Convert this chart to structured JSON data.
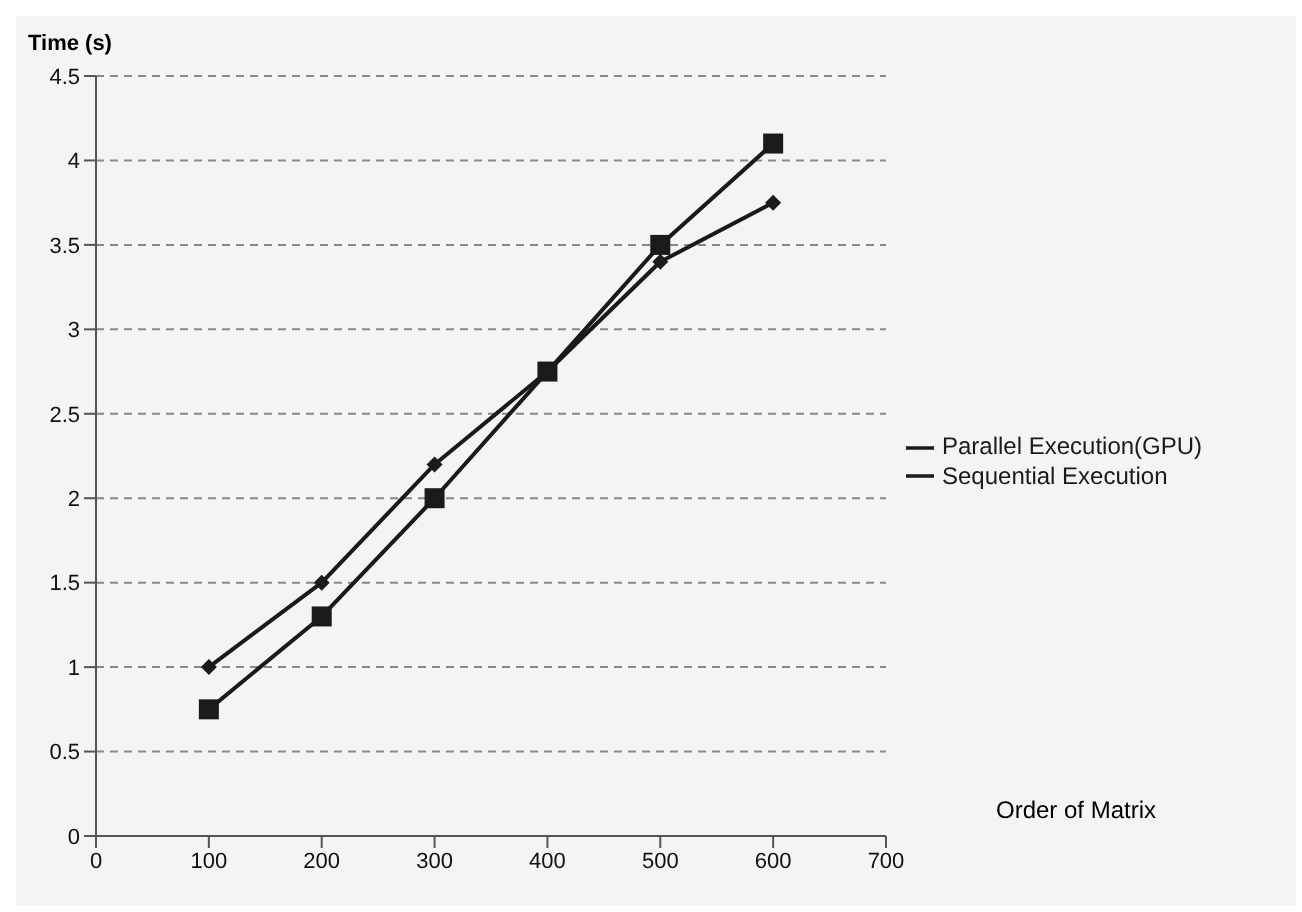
{
  "chart_data": {
    "type": "line",
    "xlabel": "Order of Matrix",
    "ylabel": "Time (s)",
    "x": [
      100,
      200,
      300,
      400,
      500,
      600
    ],
    "series": [
      {
        "name": "Parallel Execution(GPU)",
        "color": "#1a1a1a",
        "marker": "diamond",
        "values": [
          1.0,
          1.5,
          2.2,
          2.75,
          3.4,
          3.75
        ]
      },
      {
        "name": "Sequential Execution",
        "color": "#1a1a1a",
        "marker": "square",
        "values": [
          0.75,
          1.3,
          2.0,
          2.75,
          3.5,
          4.1
        ]
      }
    ],
    "xlim": [
      0,
      700
    ],
    "xticks": [
      0,
      100,
      200,
      300,
      400,
      500,
      600,
      700
    ],
    "ylim": [
      0,
      4.5
    ],
    "yticks": [
      0,
      0.5,
      1,
      1.5,
      2,
      2.5,
      3,
      3.5,
      4,
      4.5
    ],
    "grid": "y",
    "legend": "right"
  }
}
